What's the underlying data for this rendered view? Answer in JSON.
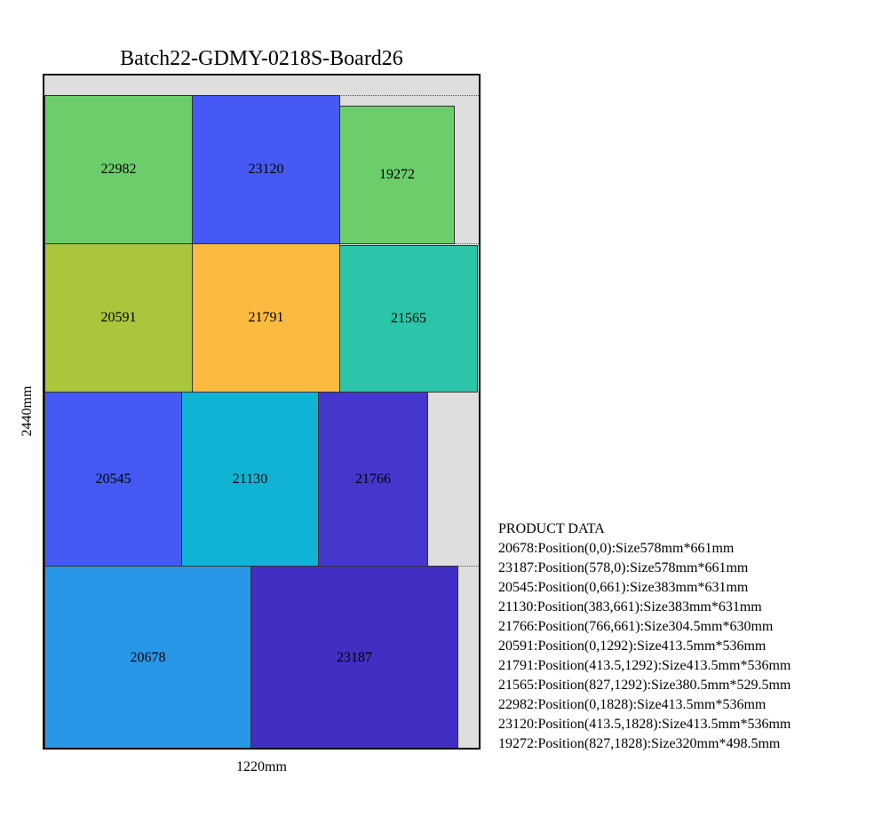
{
  "title": "Batch22-GDMY-0218S-Board26",
  "width_label": "1220mm",
  "height_label": "2440mm",
  "product_data_heading": "PRODUCT DATA",
  "colors": {
    "green": "#6bce6b",
    "blue": "#4559f5",
    "olive": "#a9c63c",
    "orange": "#fbbb40",
    "teal": "#2bc5a9",
    "cyan": "#10b3d4",
    "indigo": "#4536cc",
    "sky": "#2897e8",
    "violet": "#402fc2",
    "board": "#dedede"
  },
  "pieces": [
    {
      "id": "22982",
      "color": "green"
    },
    {
      "id": "23120",
      "color": "blue"
    },
    {
      "id": "19272",
      "color": "green"
    },
    {
      "id": "20591",
      "color": "olive"
    },
    {
      "id": "21791",
      "color": "orange"
    },
    {
      "id": "21565",
      "color": "teal"
    },
    {
      "id": "20545",
      "color": "blue"
    },
    {
      "id": "21130",
      "color": "cyan"
    },
    {
      "id": "21766",
      "color": "indigo"
    },
    {
      "id": "20678",
      "color": "sky"
    },
    {
      "id": "23187",
      "color": "violet"
    }
  ],
  "product_data": [
    "20678:Position(0,0):Size578mm*661mm",
    "23187:Position(578,0):Size578mm*661mm",
    "20545:Position(0,661):Size383mm*631mm",
    "21130:Position(383,661):Size383mm*631mm",
    "21766:Position(766,661):Size304.5mm*630mm",
    "20591:Position(0,1292):Size413.5mm*536mm",
    "21791:Position(413.5,1292):Size413.5mm*536mm",
    "21565:Position(827,1292):Size380.5mm*529.5mm",
    "22982:Position(0,1828):Size413.5mm*536mm",
    "23120:Position(413.5,1828):Size413.5mm*536mm",
    "19272:Position(827,1828):Size320mm*498.5mm"
  ]
}
